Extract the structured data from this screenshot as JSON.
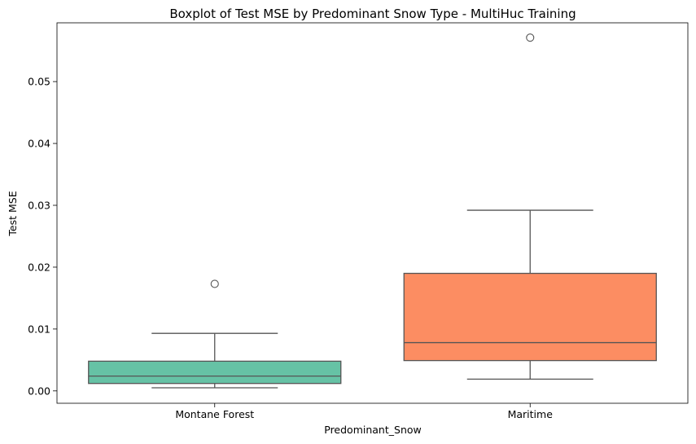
{
  "chart_data": {
    "type": "box",
    "title": "Boxplot of Test MSE by Predominant Snow Type - MultiHuc Training",
    "xlabel": "Predominant_Snow",
    "ylabel": "Test MSE",
    "ylim": [
      -0.002,
      0.0595
    ],
    "yticks": [
      0.0,
      0.01,
      0.02,
      0.03,
      0.04,
      0.05
    ],
    "ytick_labels": [
      "0.00",
      "0.01",
      "0.02",
      "0.03",
      "0.04",
      "0.05"
    ],
    "grid": false,
    "categories": [
      "Montane Forest",
      "Maritime"
    ],
    "boxes": [
      {
        "category": "Montane Forest",
        "whisker_low": 0.0005,
        "q1": 0.0012,
        "median": 0.0024,
        "q3": 0.0048,
        "whisker_high": 0.0093,
        "outliers": [
          0.0173
        ],
        "color": "#66c2a5"
      },
      {
        "category": "Maritime",
        "whisker_low": 0.0019,
        "q1": 0.0049,
        "median": 0.0078,
        "q3": 0.019,
        "whisker_high": 0.0292,
        "outliers": [
          0.0571
        ],
        "color": "#fc8d62"
      }
    ],
    "line_color": "#555555"
  }
}
